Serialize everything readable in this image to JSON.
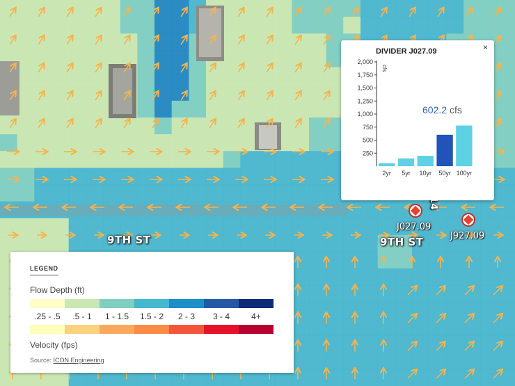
{
  "map": {
    "streets": [
      {
        "name": "9TH ST"
      },
      {
        "name": "9TH ST"
      },
      {
        "name": "14"
      }
    ],
    "markers": [
      {
        "label": "J027.09"
      },
      {
        "label": "J927.09"
      }
    ],
    "colors": {
      "arrow": "#f6b34e",
      "depth_light": "#cbe9b4",
      "depth_mid": "#7ecfc5",
      "depth_cyan": "#47b6d2",
      "depth_blue": "#1e87c7"
    }
  },
  "legend": {
    "title": "LEGEND",
    "flow_depth_label": "Flow Depth (ft)",
    "velocity_label": "Velocity (fps)",
    "bins": [
      ".25 - .5",
      ".5 - 1",
      "1 - 1.5",
      "1.5 - 2",
      "2 - 3",
      "3 - 4",
      "4+"
    ],
    "depth_colors": [
      "#ffffc8",
      "#c9e8b6",
      "#7fcfc0",
      "#43b8cf",
      "#1b8fc8",
      "#2458a6",
      "#0f2a79"
    ],
    "velocity_colors": [
      "#ffffbb",
      "#fdd27e",
      "#fca85c",
      "#fb8b45",
      "#f4543a",
      "#e6122b",
      "#b80030"
    ],
    "source_prefix": "Source:",
    "source_link": "ICON Engineering"
  },
  "popup": {
    "title": "DIVIDER J027.09",
    "close": "×",
    "value": "602.2",
    "unit": "cfs"
  },
  "chart_data": {
    "type": "bar",
    "title": "DIVIDER J027.09",
    "ylabel": "cfs",
    "categories": [
      "2yr",
      "5yr",
      "10yr",
      "50yr",
      "100yr"
    ],
    "values": [
      60,
      150,
      200,
      602.2,
      780
    ],
    "highlighted": "50yr",
    "ylim": [
      0,
      2000
    ],
    "yticks": [
      250,
      500,
      750,
      1000,
      1250,
      1500,
      1750,
      2000
    ],
    "ytick_labels": [
      "250",
      "500",
      "750",
      "1,000",
      "1,250",
      "1,500",
      "1,750",
      "2,000"
    ],
    "bar_color": "#5fd1e4",
    "highlight_color": "#2153b8"
  }
}
